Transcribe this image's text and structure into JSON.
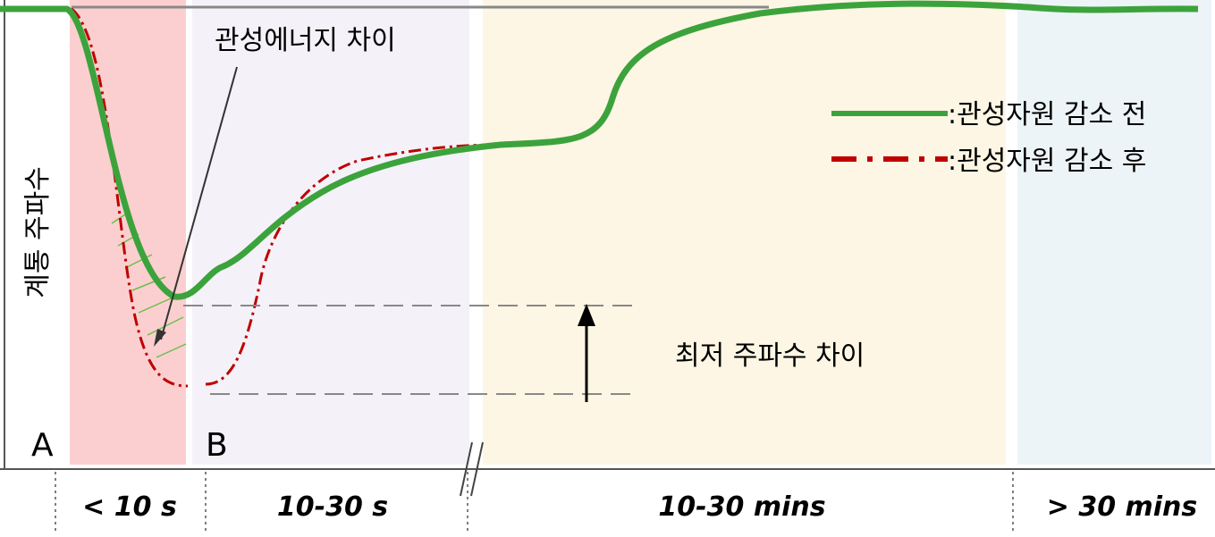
{
  "y_axis_label": "계통 주파수",
  "annotations": {
    "inertia_energy": "관성에너지 차이",
    "min_frequency": "최저 주파수 차이",
    "point_a": "A",
    "point_b": "B"
  },
  "legend": [
    {
      "label": ":관성자원 감소 전"
    },
    {
      "label": ":관성자원 감소 후"
    }
  ],
  "time_phases": [
    "< 10 s",
    "10-30 s",
    "10-30 mins",
    "> 30 mins"
  ]
}
